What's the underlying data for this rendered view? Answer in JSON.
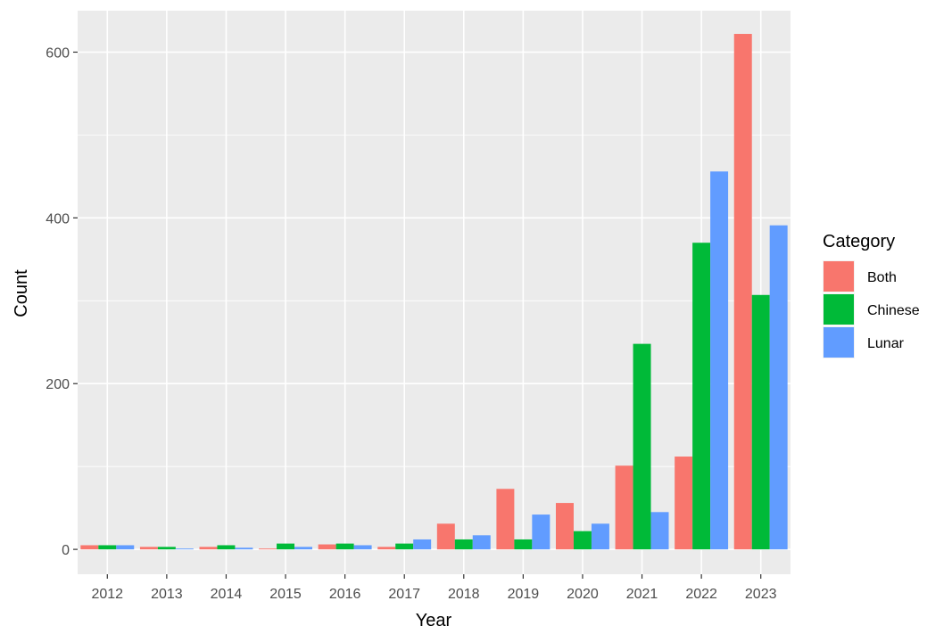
{
  "chart_data": {
    "type": "bar",
    "title": "",
    "xlabel": "Year",
    "ylabel": "Count",
    "ylim": [
      -30,
      650
    ],
    "yticks": [
      0,
      200,
      400,
      600
    ],
    "grid": true,
    "legend": {
      "title": "Category",
      "placement": "right"
    },
    "categories": [
      "2012",
      "2013",
      "2014",
      "2015",
      "2016",
      "2017",
      "2018",
      "2019",
      "2020",
      "2021",
      "2022",
      "2023"
    ],
    "series": [
      {
        "name": "Both",
        "color": "#F8766D",
        "values": [
          5,
          3,
          3,
          1,
          6,
          3,
          31,
          73,
          56,
          101,
          112,
          622
        ]
      },
      {
        "name": "Chinese",
        "color": "#00BA38",
        "values": [
          5,
          3,
          5,
          7,
          7,
          7,
          12,
          12,
          22,
          248,
          370,
          307
        ]
      },
      {
        "name": "Lunar",
        "color": "#619CFF",
        "values": [
          5,
          1,
          2,
          3,
          5,
          12,
          17,
          42,
          31,
          45,
          456,
          391
        ]
      }
    ]
  }
}
